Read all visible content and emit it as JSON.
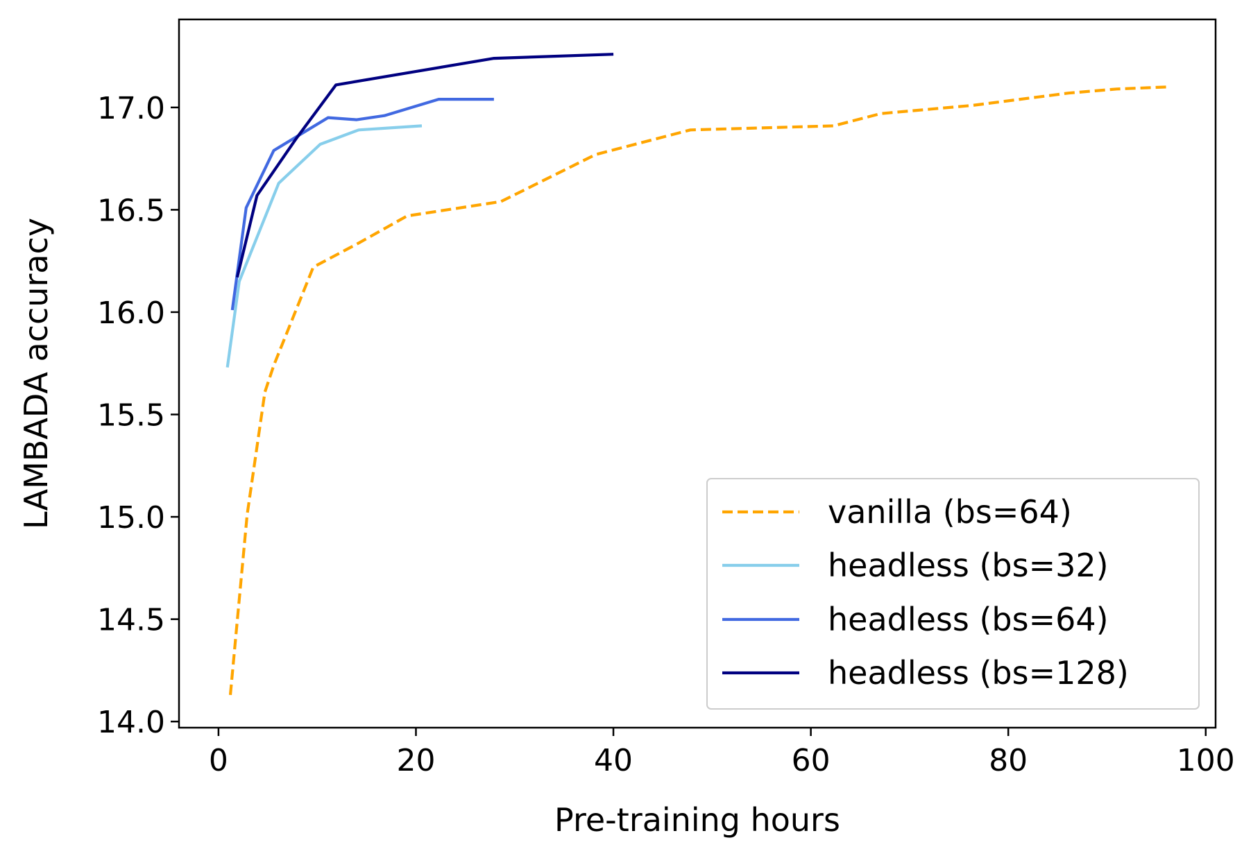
{
  "chart_data": {
    "type": "line",
    "title": "",
    "xlabel": "Pre-training hours",
    "ylabel": "LAMBADA accuracy",
    "xlim": [
      -4,
      101
    ],
    "ylim": [
      13.97,
      17.43
    ],
    "xticks": [
      0,
      20,
      40,
      60,
      80,
      100
    ],
    "yticks": [
      14.0,
      14.5,
      15.0,
      15.5,
      16.0,
      16.5,
      17.0
    ],
    "xtick_labels": [
      "0",
      "20",
      "40",
      "60",
      "80",
      "100"
    ],
    "ytick_labels": [
      "14.0",
      "14.5",
      "15.0",
      "15.5",
      "16.0",
      "16.5",
      "17.0"
    ],
    "grid": false,
    "legend_position": "lower-right",
    "series": [
      {
        "name": "vanilla (bs=64)",
        "color": "#FFA500",
        "style": "dashed",
        "x": [
          1.2,
          2.9,
          4.7,
          5.6,
          9.6,
          14.3,
          19.1,
          28.6,
          38.2,
          47.8,
          62.3,
          67.1,
          76.4,
          86.1,
          91.0,
          96.0
        ],
        "y": [
          14.13,
          15.01,
          15.61,
          15.74,
          16.22,
          16.34,
          16.47,
          16.54,
          16.77,
          16.89,
          16.91,
          16.97,
          17.01,
          17.07,
          17.09,
          17.1
        ]
      },
      {
        "name": "headless (bs=32)",
        "color": "#87CEEB",
        "style": "solid",
        "x": [
          0.9,
          2.1,
          6.1,
          10.3,
          14.2,
          20.6
        ],
        "y": [
          15.73,
          16.15,
          16.63,
          16.82,
          16.89,
          16.91
        ]
      },
      {
        "name": "headless (bs=64)",
        "color": "#4169E1",
        "style": "solid",
        "x": [
          1.4,
          2.8,
          5.6,
          11.1,
          14.0,
          16.8,
          22.3,
          27.9
        ],
        "y": [
          16.01,
          16.51,
          16.79,
          16.95,
          16.94,
          16.96,
          17.04,
          17.04
        ]
      },
      {
        "name": "headless (bs=128)",
        "color": "#000080",
        "style": "solid",
        "x": [
          1.9,
          3.9,
          7.9,
          11.9,
          27.9,
          40.0
        ],
        "y": [
          16.17,
          16.57,
          16.85,
          17.11,
          17.24,
          17.26
        ]
      }
    ]
  }
}
